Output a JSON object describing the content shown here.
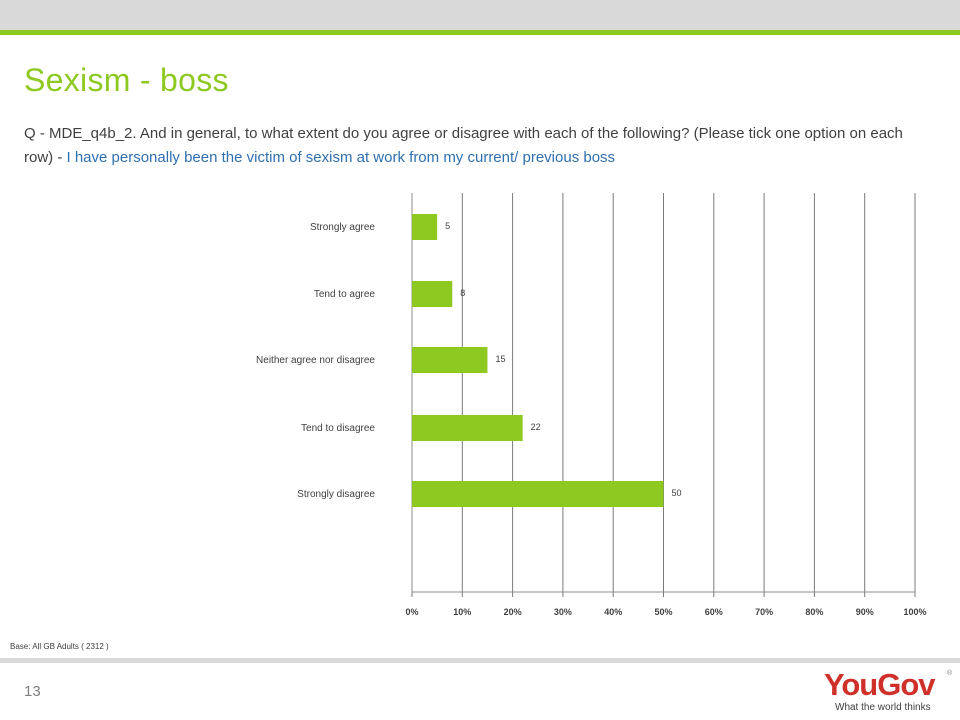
{
  "slide": {
    "title": "Sexism - boss",
    "question_prefix": "Q - MDE_q4b_2. And in general, to what extent do you agree or disagree with each of the following? (Please tick one option on each row) - ",
    "question_statement": "I have personally been the victim of sexism at work from my current/ previous boss",
    "base_note": "Base: All GB Adults ( 2312 )",
    "page_number": "13",
    "logo_text": "YouGov",
    "logo_tagline": "What the world thinks",
    "logo_reg": "®"
  },
  "colors": {
    "accent": "#8ec921",
    "bar": "#8ec921",
    "statement": "#2f6fb0",
    "logo_red": "#d0302a"
  },
  "chart_data": {
    "type": "bar",
    "orientation": "horizontal",
    "categories": [
      "Strongly agree",
      "Tend to agree",
      "Neither agree nor disagree",
      "Tend to disagree",
      "Strongly disagree"
    ],
    "values": [
      5,
      8,
      15,
      22,
      50
    ],
    "data_labels": [
      "5",
      "8",
      "15",
      "22",
      "50"
    ],
    "xlim": [
      0,
      100
    ],
    "xticks": [
      "0%",
      "10%",
      "20%",
      "30%",
      "40%",
      "50%",
      "60%",
      "70%",
      "80%",
      "90%",
      "100%"
    ],
    "grid": true,
    "legend": "none"
  }
}
